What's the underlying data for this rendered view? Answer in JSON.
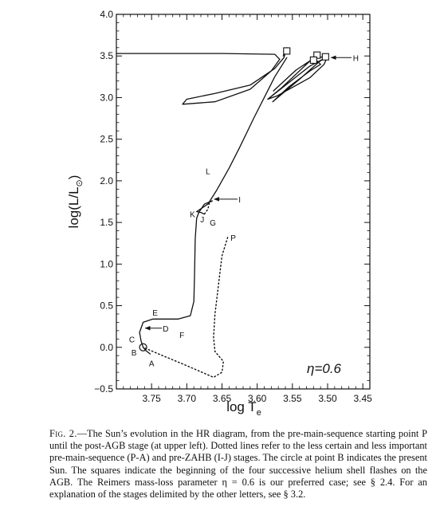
{
  "chart_data": {
    "type": "line",
    "title": "",
    "xlabel": "log T",
    "xlabel_sub": "e",
    "ylabel": "log(L/L",
    "ylabel_sub": "⊙",
    "ylabel_close": ")",
    "x_reversed": true,
    "xlim": [
      3.8,
      3.44
    ],
    "ylim": [
      -0.5,
      4.0
    ],
    "x_ticks": [
      {
        "v": 3.75,
        "label": "3.75"
      },
      {
        "v": 3.7,
        "label": "3.70"
      },
      {
        "v": 3.65,
        "label": "3.65"
      },
      {
        "v": 3.6,
        "label": "3.60"
      },
      {
        "v": 3.55,
        "label": "3.55"
      },
      {
        "v": 3.5,
        "label": "3.50"
      },
      {
        "v": 3.45,
        "label": "3.45"
      }
    ],
    "y_ticks": [
      {
        "v": -0.5,
        "label": "−0.5"
      },
      {
        "v": 0.0,
        "label": "0.0"
      },
      {
        "v": 0.5,
        "label": "0.5"
      },
      {
        "v": 1.0,
        "label": "1.0"
      },
      {
        "v": 1.5,
        "label": "1.5"
      },
      {
        "v": 2.0,
        "label": "2.0"
      },
      {
        "v": 2.5,
        "label": "2.5"
      },
      {
        "v": 3.0,
        "label": "3.0"
      },
      {
        "v": 3.5,
        "label": "3.5"
      },
      {
        "v": 4.0,
        "label": "4.0"
      }
    ],
    "annotation": "η=0.6",
    "series": [
      {
        "style": "dotted",
        "points": [
          [
            3.642,
            1.32
          ],
          [
            3.65,
            1.1
          ],
          [
            3.655,
            0.75
          ],
          [
            3.66,
            0.4
          ],
          [
            3.662,
            0.12
          ],
          [
            3.66,
            -0.05
          ],
          [
            3.648,
            -0.17
          ],
          [
            3.65,
            -0.3
          ],
          [
            3.662,
            -0.36
          ],
          [
            3.7,
            -0.22
          ],
          [
            3.74,
            -0.08
          ],
          [
            3.762,
            0.0
          ]
        ]
      },
      {
        "style": "solid",
        "points": [
          [
            3.762,
            0.0
          ],
          [
            3.758,
            -0.04
          ],
          [
            3.752,
            -0.08
          ]
        ]
      },
      {
        "style": "solid",
        "points": [
          [
            3.762,
            0.0
          ],
          [
            3.765,
            0.08
          ],
          [
            3.767,
            0.18
          ],
          [
            3.762,
            0.3
          ],
          [
            3.748,
            0.34
          ],
          [
            3.712,
            0.34
          ],
          [
            3.695,
            0.38
          ],
          [
            3.69,
            0.55
          ],
          [
            3.689,
            0.85
          ],
          [
            3.688,
            1.3
          ],
          [
            3.686,
            1.55
          ],
          [
            3.683,
            1.62
          ],
          [
            3.675,
            1.72
          ],
          [
            3.664,
            1.76
          ]
        ]
      },
      {
        "style": "dotted",
        "points": [
          [
            3.664,
            1.76
          ],
          [
            3.668,
            1.73
          ],
          [
            3.67,
            1.66
          ],
          [
            3.675,
            1.6
          ]
        ]
      },
      {
        "style": "solid",
        "points": [
          [
            3.675,
            1.6
          ],
          [
            3.68,
            1.62
          ],
          [
            3.686,
            1.63
          ],
          [
            3.67,
            1.72
          ],
          [
            3.658,
            1.88
          ],
          [
            3.64,
            2.15
          ],
          [
            3.625,
            2.4
          ],
          [
            3.605,
            2.75
          ],
          [
            3.59,
            3.0
          ],
          [
            3.575,
            3.25
          ],
          [
            3.558,
            3.48
          ]
        ]
      },
      {
        "style": "solid",
        "points": [
          [
            3.577,
            3.08
          ],
          [
            3.545,
            3.33
          ],
          [
            3.52,
            3.47
          ],
          [
            3.5,
            3.5
          ],
          [
            3.505,
            3.4
          ],
          [
            3.525,
            3.24
          ],
          [
            3.572,
            3.02
          ],
          [
            3.585,
            2.98
          ],
          [
            3.555,
            3.18
          ],
          [
            3.525,
            3.38
          ],
          [
            3.505,
            3.47
          ],
          [
            3.512,
            3.43
          ],
          [
            3.54,
            3.22
          ],
          [
            3.578,
            2.95
          ],
          [
            3.555,
            3.13
          ],
          [
            3.525,
            3.32
          ],
          [
            3.51,
            3.4
          ],
          [
            3.52,
            3.48
          ],
          [
            3.535,
            3.36
          ],
          [
            3.565,
            3.12
          ],
          [
            3.585,
            2.98
          ]
        ]
      },
      {
        "style": "solid",
        "points": [
          [
            3.563,
            3.5
          ],
          [
            3.558,
            3.6
          ],
          [
            3.562,
            3.48
          ],
          [
            3.575,
            3.35
          ],
          [
            3.61,
            3.15
          ],
          [
            3.66,
            3.05
          ],
          [
            3.7,
            2.98
          ],
          [
            3.706,
            2.92
          ],
          [
            3.66,
            2.95
          ],
          [
            3.61,
            3.1
          ],
          [
            3.58,
            3.32
          ],
          [
            3.568,
            3.46
          ],
          [
            3.575,
            3.52
          ],
          [
            3.65,
            3.53
          ],
          [
            3.72,
            3.53
          ],
          [
            3.8,
            3.53
          ]
        ]
      }
    ],
    "markers": [
      {
        "type": "circle",
        "x": 3.762,
        "y": 0.0
      },
      {
        "type": "square",
        "x": 3.558,
        "y": 3.56
      },
      {
        "type": "square",
        "x": 3.515,
        "y": 3.51
      },
      {
        "type": "square",
        "x": 3.52,
        "y": 3.45
      },
      {
        "type": "square",
        "x": 3.503,
        "y": 3.49
      }
    ],
    "point_labels": [
      {
        "text": "A",
        "x": 3.75,
        "y": -0.19
      },
      {
        "text": "B",
        "x": 3.775,
        "y": -0.06
      },
      {
        "text": "C",
        "x": 3.778,
        "y": 0.1
      },
      {
        "text": "D",
        "x": 3.73,
        "y": 0.23
      },
      {
        "text": "E",
        "x": 3.745,
        "y": 0.42
      },
      {
        "text": "F",
        "x": 3.707,
        "y": 0.15
      },
      {
        "text": "G",
        "x": 3.663,
        "y": 1.5
      },
      {
        "text": "I",
        "x": 3.625,
        "y": 1.78
      },
      {
        "text": "J",
        "x": 3.678,
        "y": 1.54
      },
      {
        "text": "K",
        "x": 3.692,
        "y": 1.6
      },
      {
        "text": "L",
        "x": 3.67,
        "y": 2.12
      },
      {
        "text": "P",
        "x": 3.634,
        "y": 1.32
      },
      {
        "text": "H",
        "x": 3.46,
        "y": 3.48
      }
    ],
    "arrows": [
      {
        "from": [
          3.735,
          0.23
        ],
        "to": [
          3.759,
          0.23
        ]
      },
      {
        "from": [
          3.628,
          1.78
        ],
        "to": [
          3.661,
          1.78
        ]
      },
      {
        "from": [
          3.466,
          3.48
        ],
        "to": [
          3.495,
          3.48
        ]
      }
    ]
  },
  "caption": {
    "label": "Fig. 2.",
    "text": "—The Sun’s evolution in the HR diagram, from the pre-main-sequence starting point P until the post-AGB stage (at upper left). Dotted lines refer to the less certain and less important pre-main-sequence (P-A) and pre-ZAHB (I-J) stages. The circle at point B indicates the present Sun. The squares indicate the beginning of the four successive helium shell flashes on the AGB. The Reimers mass-loss parameter η = 0.6 is our preferred case; see § 2.4. For an explanation of the stages delimited by the other letters, see § 3.2."
  }
}
